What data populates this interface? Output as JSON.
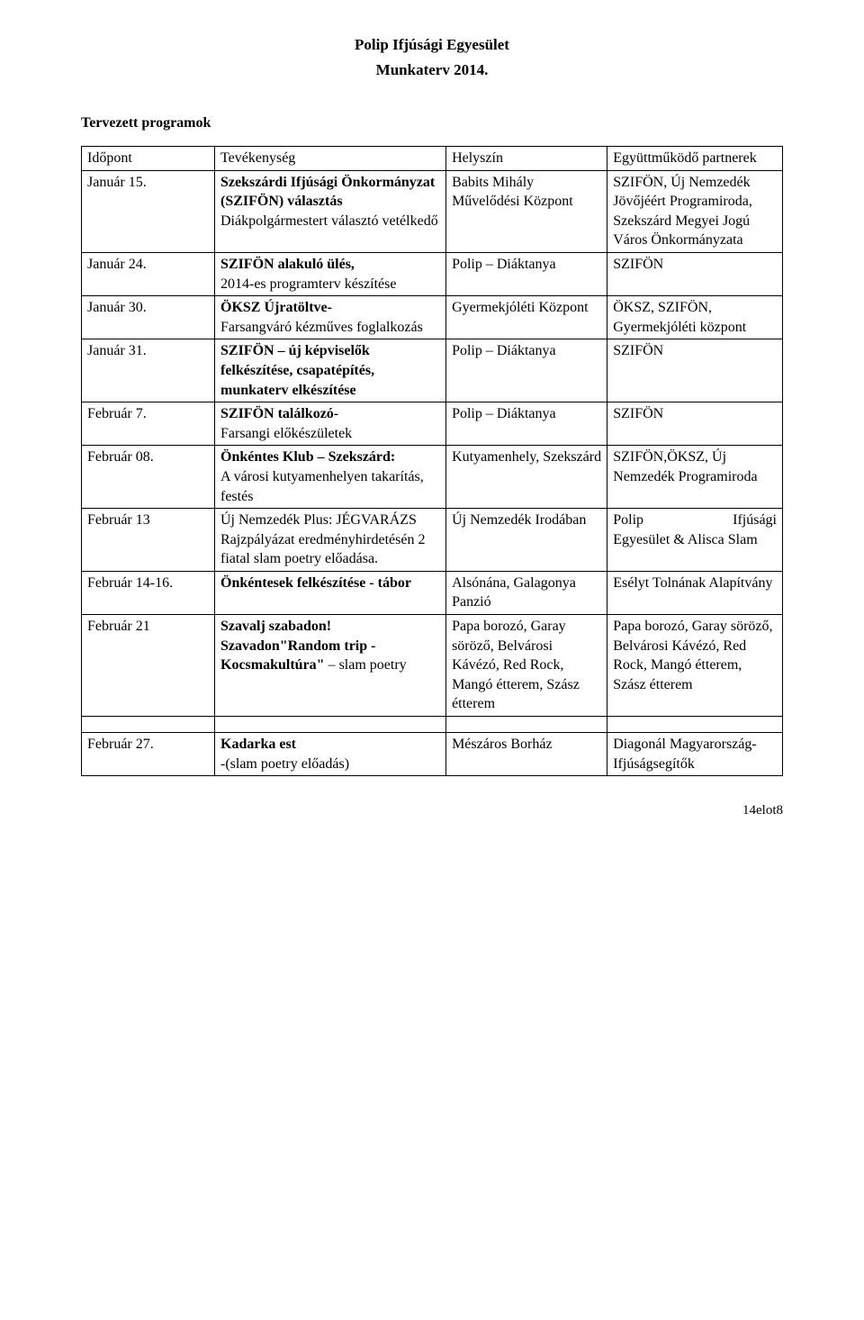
{
  "title": "Polip Ifjúsági Egyesület",
  "subtitle": "Munkaterv 2014.",
  "section_heading": "Tervezett programok",
  "columns": [
    "Időpont",
    "Tevékenység",
    "Helyszín",
    "Együttműködő partnerek"
  ],
  "rows": [
    {
      "date": "Január 15.",
      "activity_bold": "Szekszárdi Ifjúsági Önkormányzat (SZIFÖN) választás",
      "activity_plain": "Diákpolgármestert választó vetélkedő",
      "venue": "Babits Mihály Művelődési Központ",
      "partner": "SZIFÖN, Új Nemzedék Jövőjéért Programiroda, Szekszárd Megyei Jogú Város Önkormányzata"
    },
    {
      "date": "Január 24.",
      "activity_bold": "SZIFÖN alakuló ülés,",
      "activity_plain": "2014-es programterv készítése",
      "venue": "Polip – Diáktanya",
      "partner": "SZIFÖN"
    },
    {
      "date": "Január 30.",
      "activity_bold": "ÖKSZ Újratöltve-",
      "activity_plain": "Farsangváró kézműves foglalkozás",
      "venue": "Gyermekjóléti Központ",
      "partner": "ÖKSZ, SZIFÖN, Gyermekjóléti központ"
    },
    {
      "date": "Január 31.",
      "activity_bold": "SZIFÖN – új képviselők felkészítése, csapatépítés, munkaterv elkészítése",
      "activity_plain": "",
      "venue": "Polip – Diáktanya",
      "partner": "SZIFÖN"
    },
    {
      "date": "Február 7.",
      "activity_bold": "SZIFÖN találkozó-",
      "activity_plain": "Farsangi előkészületek",
      "venue": "Polip – Diáktanya",
      "partner": "SZIFÖN"
    },
    {
      "date": "Február 08.",
      "activity_bold": "Önkéntes Klub – Szekszárd:",
      "activity_plain": "A városi kutyamenhelyen takarítás, festés",
      "venue": "Kutyamenhely, Szekszárd",
      "partner": "SZIFÖN,ÖKSZ, Új Nemzedék Programiroda"
    },
    {
      "date": "Február 13",
      "activity_bold": "",
      "activity_plain": "Új Nemzedék Plus: JÉGVARÁZS Rajzpályázat eredményhirdetésén 2 fiatal slam poetry előadása.",
      "venue": "Új Nemzedék Irodában",
      "partner": "Polip Ifjúsági Egyesület & Alisca Slam",
      "partner_wide": true
    },
    {
      "date": "Február 14-16.",
      "activity_bold": "Önkéntesek felkészítése - tábor",
      "activity_plain": "",
      "venue": "Alsónána, Galagonya Panzió",
      "partner": "Esélyt Tolnának Alapítvány"
    },
    {
      "date": "Február 21",
      "activity_bold": "Szavalj szabadon! Szavadon\"Random trip - Kocsmakultúra\"",
      "activity_trail": " – slam poetry",
      "activity_plain": "",
      "venue": "Papa borozó, Garay söröző, Belvárosi Kávézó, Red Rock, Mangó étterem, Szász étterem",
      "partner": "Papa borozó, Garay söröző, Belvárosi Kávézó, Red Rock, Mangó étterem, Szász étterem"
    }
  ],
  "last_row": {
    "date": "Február 27.",
    "activity_bold": "Kadarka est",
    "activity_plain": "-(slam poetry előadás)",
    "venue": "Mészáros Borház",
    "partner": "Diagonál Magyarország- Ifjúságsegítők"
  },
  "footer": "14elot8",
  "colors": {
    "text": "#000000",
    "border": "#000000",
    "bg": "#ffffff"
  }
}
